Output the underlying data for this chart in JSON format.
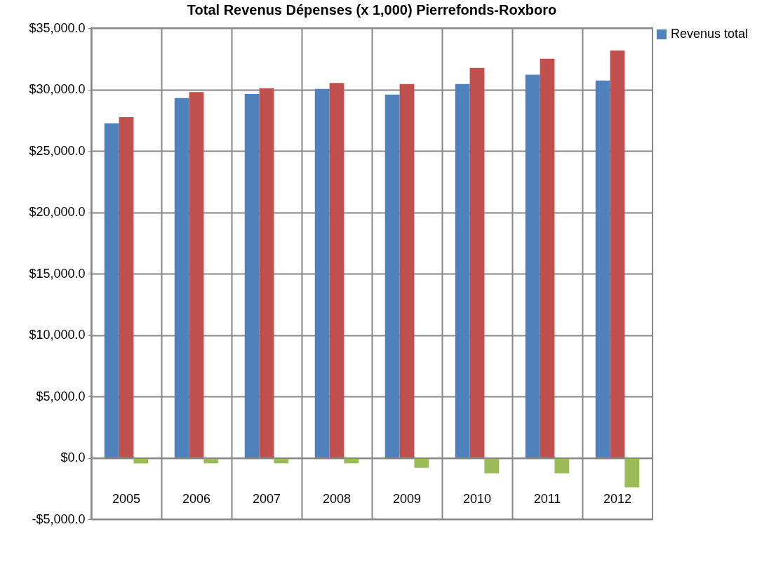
{
  "chart_data": {
    "type": "bar",
    "title": "Total Revenus Dépenses (x 1,000) Pierrefonds-Roxboro",
    "categories": [
      "2005",
      "2006",
      "2007",
      "2008",
      "2009",
      "2010",
      "2011",
      "2012"
    ],
    "series": [
      {
        "name": "Revenus total",
        "color": "#4f81bd",
        "values": [
          27250,
          29300,
          29630,
          30040,
          29590,
          30450,
          31200,
          30730
        ]
      },
      {
        "color": "#c0504d",
        "values": [
          27750,
          29780,
          30100,
          30530,
          30450,
          31760,
          32500,
          33170
        ]
      },
      {
        "color": "#9bbb59",
        "values": [
          -450,
          -450,
          -450,
          -450,
          -810,
          -1260,
          -1260,
          -2400
        ]
      }
    ],
    "ylim": [
      -5000,
      35000
    ],
    "yticks": [
      {
        "value": -5000,
        "label": "-$5,000.0"
      },
      {
        "value": 0,
        "label": "$0.0"
      },
      {
        "value": 5000,
        "label": "$5,000.0"
      },
      {
        "value": 10000,
        "label": "$10,000.0"
      },
      {
        "value": 15000,
        "label": "$15,000.0"
      },
      {
        "value": 20000,
        "label": "$20,000.0"
      },
      {
        "value": 25000,
        "label": "$25,000.0"
      },
      {
        "value": 30000,
        "label": "$30,000.0"
      },
      {
        "value": 35000,
        "label": "$35,000.0"
      }
    ],
    "grid": true,
    "legend": "right"
  }
}
